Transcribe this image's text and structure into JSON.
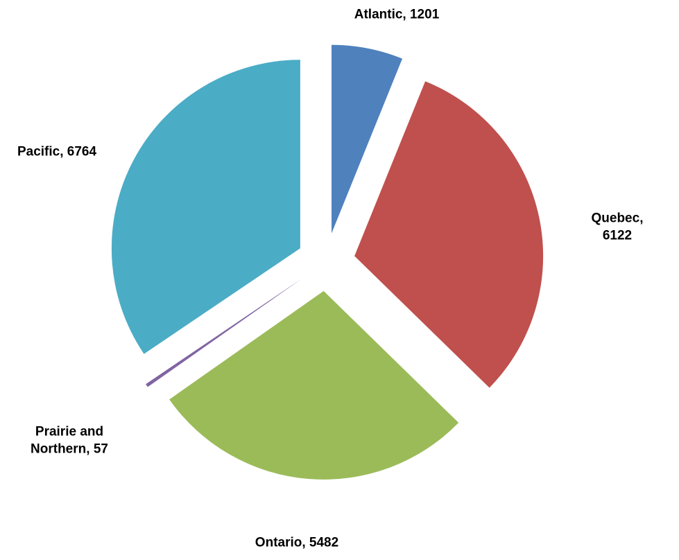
{
  "chart_data": {
    "type": "pie",
    "categories": [
      "Atlantic",
      "Quebec",
      "Ontario",
      "Prairie and Northern",
      "Pacific"
    ],
    "values": [
      1201,
      6122,
      5482,
      57,
      6764
    ],
    "value_labels": [
      ", 1201",
      ", 6122",
      ", 5482",
      ", 57",
      ", 6764"
    ],
    "colors": [
      "#4f81bd",
      "#c0504d",
      "#9bbb59",
      "#8064a2",
      "#4bacc6"
    ]
  }
}
